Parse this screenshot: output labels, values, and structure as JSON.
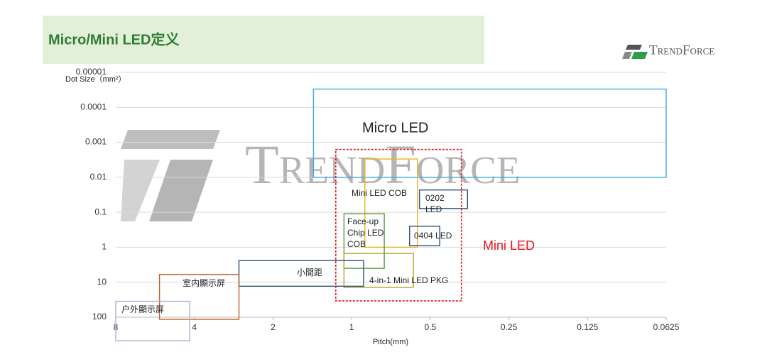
{
  "header": {
    "title": "Micro/Mini LED定义",
    "logo": "TrendForce"
  },
  "watermark": "TrendForce",
  "chart_data": {
    "type": "region",
    "y_label": "Dot Size（mm²）",
    "x_label": "Pitch(mm)",
    "xlim": [
      8,
      0.0625
    ],
    "xticks": [
      8,
      4,
      2,
      1,
      0.5,
      0.25,
      0.125,
      0.0625
    ],
    "xscale": "log",
    "ylim": [
      1e-05,
      100
    ],
    "yticks": [
      1e-05,
      0.0001,
      0.001,
      0.01,
      0.1,
      1,
      10,
      100
    ],
    "yscale": "log",
    "y_reversed": true,
    "grid": true,
    "regions": [
      {
        "label": [
          "Micro LED"
        ],
        "color": "#41a9d9",
        "x": [
          1.4,
          0.0625
        ],
        "y": [
          3e-05,
          0.01
        ]
      },
      {
        "label": [
          "Mini LED"
        ],
        "color": "#e8141c",
        "dashed": true,
        "x": [
          1.15,
          0.38
        ],
        "y": [
          0.0016,
          34
        ]
      },
      {
        "label": [
          "Mini LED COB"
        ],
        "color": "#e6b422",
        "x": [
          0.89,
          0.56
        ],
        "y": [
          0.003,
          1
        ]
      },
      {
        "label": [
          "0202",
          "LED"
        ],
        "color": "#2f4f7f",
        "x": [
          0.55,
          0.36
        ],
        "y": [
          0.023,
          0.078
        ]
      },
      {
        "label": [
          "0404 LED"
        ],
        "color": "#2f4f7f",
        "x": [
          0.6,
          0.46
        ],
        "y": [
          0.25,
          0.9
        ]
      },
      {
        "label": [
          "Face-up",
          "Chip LED",
          "COB"
        ],
        "color": "#5a9a3c",
        "x": [
          1.07,
          0.75
        ],
        "y": [
          0.11,
          4
        ]
      },
      {
        "label": [
          "4-in-1 Mini LED PKG"
        ],
        "color": "#b8a22a",
        "x": [
          1.07,
          0.58
        ],
        "y": [
          1.5,
          14
        ]
      },
      {
        "label": [
          "小間距"
        ],
        "color": "#2f4f7f",
        "x": [
          2.7,
          0.9
        ],
        "y": [
          2.4,
          13
        ]
      },
      {
        "label": [
          "室内顯示屏"
        ],
        "color": "#c0602a",
        "x": [
          5.44,
          2.7
        ],
        "y": [
          6,
          115
        ]
      },
      {
        "label": [
          "户外顯示屏"
        ],
        "color": "#a7b4cc",
        "x": [
          8,
          4.17
        ],
        "y": [
          35,
          470
        ]
      }
    ]
  }
}
